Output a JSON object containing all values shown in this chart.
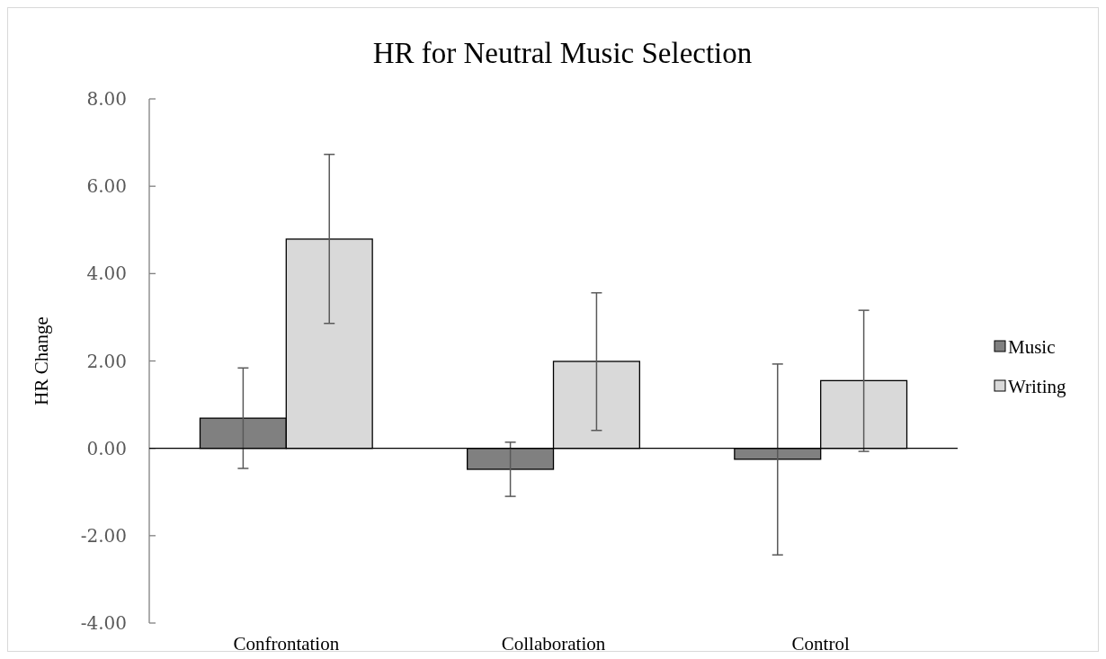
{
  "chart_data": {
    "type": "bar",
    "title": "HR for Neutral Music Selection",
    "ylabel": "HR Change",
    "categories": [
      "Confrontation",
      "Collaboration",
      "Control"
    ],
    "series": [
      {
        "name": "Music",
        "color": "#808080",
        "values": [
          0.69,
          -0.48,
          -0.25
        ],
        "errors": [
          [
            -0.46,
            1.84
          ],
          [
            -1.1,
            0.14
          ],
          [
            -2.44,
            1.93
          ]
        ]
      },
      {
        "name": "Writing",
        "color": "#d9d9d9",
        "values": [
          4.79,
          1.99,
          1.55
        ],
        "errors": [
          [
            2.86,
            6.73
          ],
          [
            0.41,
            3.56
          ],
          [
            -0.07,
            3.16
          ]
        ]
      }
    ],
    "ylim": [
      -4,
      8
    ],
    "yticks": [
      {
        "value": -4,
        "label": "-4.00"
      },
      {
        "value": -2,
        "label": "-2.00"
      },
      {
        "value": 0,
        "label": "0.00"
      },
      {
        "value": 2,
        "label": "2.00"
      },
      {
        "value": 4,
        "label": "4.00"
      },
      {
        "value": 6,
        "label": "6.00"
      },
      {
        "value": 8,
        "label": "8.00"
      }
    ],
    "legend": "right"
  }
}
